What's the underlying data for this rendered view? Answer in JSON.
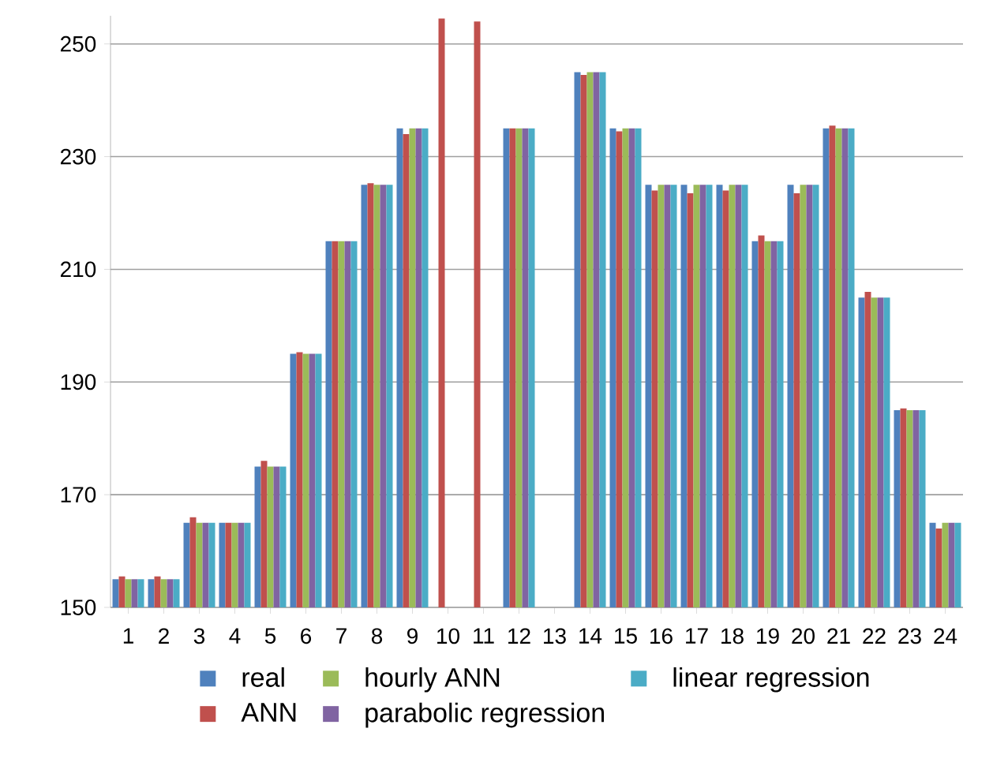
{
  "chart_data": {
    "type": "bar",
    "categories": [
      "1",
      "2",
      "3",
      "4",
      "5",
      "6",
      "7",
      "8",
      "9",
      "10",
      "11",
      "12",
      "13",
      "14",
      "15",
      "16",
      "17",
      "18",
      "19",
      "20",
      "21",
      "22",
      "23",
      "24"
    ],
    "series": [
      {
        "name": "real",
        "color": "#4f81bd",
        "values": [
          155,
          155,
          165,
          165,
          175,
          195,
          215,
          225,
          235,
          null,
          null,
          235,
          null,
          245,
          235,
          225,
          225,
          225,
          215,
          225,
          235,
          205,
          185,
          165
        ]
      },
      {
        "name": "ANN",
        "color": "#c0504d",
        "values": [
          155.5,
          155.5,
          166,
          165,
          176,
          195.3,
          215,
          225.3,
          234,
          254.5,
          254,
          235,
          null,
          244.5,
          234.5,
          224,
          223.5,
          224,
          216,
          223.5,
          235.5,
          206,
          185.3,
          164
        ]
      },
      {
        "name": "hourly ANN",
        "color": "#9bbb59",
        "values": [
          155,
          155,
          165,
          165,
          175,
          195,
          215,
          225,
          235,
          null,
          null,
          235,
          null,
          245,
          235,
          225,
          225,
          225,
          215,
          225,
          235,
          205,
          185,
          165
        ]
      },
      {
        "name": "parabolic regression",
        "color": "#8064a2",
        "values": [
          155,
          155,
          165,
          165,
          175,
          195,
          215,
          225,
          235,
          null,
          null,
          235,
          null,
          245,
          235,
          225,
          225,
          225,
          215,
          225,
          235,
          205,
          185,
          165
        ]
      },
      {
        "name": "linear regression",
        "color": "#4bacc6",
        "values": [
          155,
          155,
          165,
          165,
          175,
          195,
          215,
          225,
          235,
          null,
          null,
          235,
          null,
          245,
          235,
          225,
          225,
          225,
          215,
          225,
          235,
          205,
          185,
          165
        ]
      }
    ],
    "ylim": [
      150,
      255
    ],
    "yticks": [
      150,
      170,
      190,
      210,
      230,
      250
    ],
    "grid": "y",
    "legend": "bottom"
  }
}
